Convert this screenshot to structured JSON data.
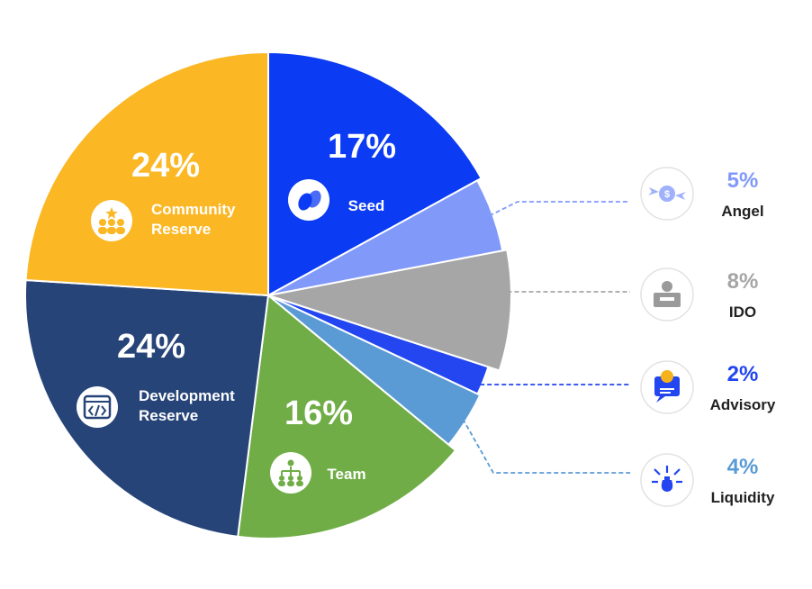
{
  "chart_data": {
    "type": "pie",
    "slices": [
      {
        "label": "Seed",
        "value": 17,
        "display": "17%",
        "color": "#0b3bf2",
        "icon": "seed-icon"
      },
      {
        "label": "Angel",
        "value": 5,
        "display": "5%",
        "color": "#8199f9",
        "icon": "flying-coin-icon"
      },
      {
        "label": "IDO",
        "value": 8,
        "display": "8%",
        "color": "#a6a6a6",
        "icon": "coin-box-icon"
      },
      {
        "label": "Advisory",
        "value": 2,
        "display": "2%",
        "color": "#2346f0",
        "icon": "advisory-icon"
      },
      {
        "label": "Liquidity",
        "value": 4,
        "display": "4%",
        "color": "#5b9bd5",
        "icon": "liquidity-icon"
      },
      {
        "label": "Team",
        "value": 16,
        "display": "16%",
        "color": "#70ad47",
        "icon": "team-icon"
      },
      {
        "label": "Development\nReserve",
        "value": 24,
        "display": "24%",
        "color": "#264478",
        "icon": "code-window-icon"
      },
      {
        "label": "Community\nReserve",
        "value": 24,
        "display": "24%",
        "color": "#fbb724",
        "icon": "community-icon"
      }
    ]
  }
}
